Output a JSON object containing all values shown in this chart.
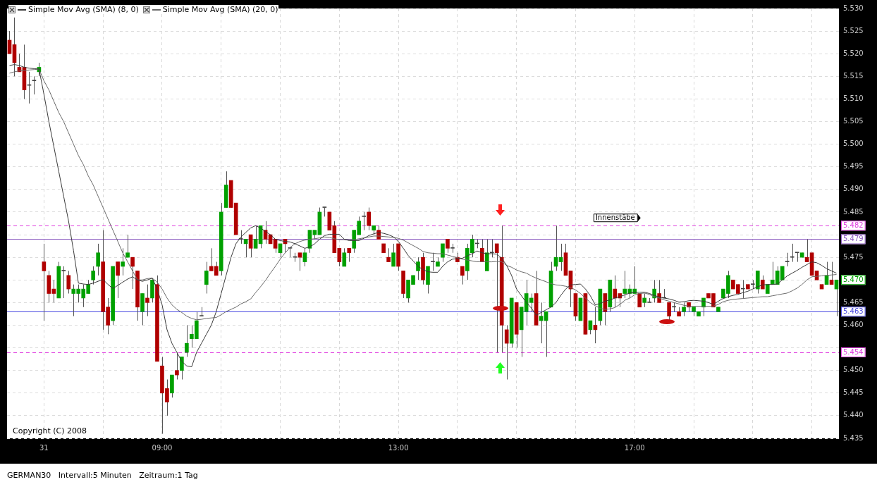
{
  "chart_data": {
    "type": "candlestick",
    "title": "GERMAN30",
    "subtitle": "Intervall:5 Minuten   Zeitraum:1 Tag",
    "categories": [
      null,
      null,
      null,
      null,
      null,
      null,
      null,
      "31",
      null,
      null,
      null,
      null,
      null,
      null,
      null,
      null,
      null,
      null,
      null,
      null,
      null,
      null,
      null,
      null,
      null,
      null,
      null,
      null,
      null,
      null,
      null,
      "09:00",
      null,
      null,
      null,
      null,
      null,
      null,
      null,
      null,
      null,
      null,
      null,
      null,
      null,
      null,
      null,
      null,
      null,
      null,
      null,
      null,
      null,
      null,
      null,
      null,
      null,
      null,
      null,
      null,
      null,
      null,
      null,
      null,
      null,
      null,
      null,
      null,
      null,
      null,
      null,
      null,
      null,
      null,
      null,
      null,
      null,
      null,
      null,
      "13:00",
      null,
      null,
      null,
      null,
      null,
      null,
      null,
      null,
      null,
      null,
      null,
      null,
      null,
      null,
      null,
      null,
      null,
      null,
      null,
      null,
      null,
      null,
      null,
      null,
      null,
      null,
      null,
      null,
      null,
      null,
      null,
      null,
      null,
      null,
      null,
      null,
      null,
      null,
      null,
      null,
      null,
      null,
      null,
      null,
      null,
      null,
      null,
      "17:00",
      null,
      null,
      null,
      null,
      null,
      null,
      null,
      null,
      null,
      null,
      null,
      null,
      null,
      null,
      null,
      null,
      null,
      null,
      null,
      null,
      null,
      null,
      null,
      null,
      null,
      null,
      null,
      null,
      null,
      null,
      null,
      null,
      null,
      null,
      null,
      null,
      null,
      null,
      null,
      null,
      null
    ],
    "ohlc": [
      [
        5523,
        5525,
        5520,
        5520
      ],
      [
        5522,
        5528,
        5515,
        5518
      ],
      [
        5517,
        5520,
        5516,
        5516
      ],
      [
        5517,
        5522,
        5510,
        5512
      ],
      [
        5513,
        5516,
        5509,
        5513
      ],
      [
        5514,
        5515,
        5511,
        5514
      ],
      [
        5516,
        5518,
        5515,
        5517
      ],
      [
        5474,
        5478,
        5461,
        5472
      ],
      [
        5471,
        5472,
        5465,
        5467
      ],
      [
        5468,
        5470,
        5465,
        5467
      ],
      [
        5466,
        5474,
        5466,
        5473
      ],
      [
        5472,
        5473,
        5466,
        5472
      ],
      [
        5471,
        5472,
        5467,
        5468
      ],
      [
        5467,
        5469,
        5462,
        5468
      ],
      [
        5467,
        5469,
        5465,
        5468
      ],
      [
        5466,
        5469,
        5464,
        5468
      ],
      [
        5467,
        5470,
        5467,
        5469
      ],
      [
        5470,
        5473,
        5469,
        5472
      ],
      [
        5473,
        5478,
        5471,
        5476
      ],
      [
        5474,
        5481,
        5459,
        5463
      ],
      [
        5464,
        5466,
        5458,
        5460
      ],
      [
        5461,
        5473,
        5460,
        5473
      ],
      [
        5474,
        5474,
        5466,
        5471
      ],
      [
        5473,
        5477,
        5471,
        5474
      ],
      [
        5475,
        5480,
        5475,
        5476
      ],
      [
        5475,
        5475,
        5468,
        5473
      ],
      [
        5472,
        5472,
        5461,
        5464
      ],
      [
        5463,
        5467,
        5460,
        5467
      ],
      [
        5466,
        5469,
        5462,
        5465
      ],
      [
        5466,
        5470,
        5465,
        5470
      ],
      [
        5469,
        5471,
        5452,
        5452
      ],
      [
        5451,
        5453,
        5436,
        5445
      ],
      [
        5446,
        5448,
        5440,
        5443
      ],
      [
        5445,
        5449,
        5444,
        5449
      ],
      [
        5450,
        5454,
        5448,
        5449
      ],
      [
        5450,
        5453,
        5448,
        5453
      ],
      [
        5454,
        5460,
        5453,
        5456
      ],
      [
        5457,
        5460,
        5455,
        5458
      ],
      [
        5457,
        5463,
        5457,
        5461
      ],
      [
        5462,
        5464,
        5462,
        5462
      ],
      [
        5469,
        5474,
        5467,
        5472
      ],
      [
        5473,
        5477,
        5472,
        5472
      ],
      [
        5473,
        5474,
        5471,
        5471
      ],
      [
        5472,
        5487,
        5471,
        5485
      ],
      [
        5486,
        5494,
        5486,
        5491
      ],
      [
        5492,
        5492,
        5486,
        5486
      ],
      [
        5487,
        5487,
        5480,
        5480
      ],
      [
        5479,
        5481,
        5478,
        5479
      ],
      [
        5478,
        5479,
        5475,
        5479
      ],
      [
        5480,
        5480,
        5475,
        5477
      ],
      [
        5477,
        5482,
        5477,
        5479
      ],
      [
        5478,
        5482,
        5477,
        5482
      ],
      [
        5481,
        5483,
        5478,
        5479
      ],
      [
        5480,
        5480,
        5478,
        5478
      ],
      [
        5479,
        5479,
        5476,
        5477
      ],
      [
        5476,
        5478,
        5475,
        5478
      ],
      [
        5479,
        5479,
        5476,
        5478
      ],
      [
        5477,
        5477,
        5475,
        5477
      ],
      [
        5475,
        5476,
        5474,
        5475
      ],
      [
        5476,
        5476,
        5472,
        5475
      ],
      [
        5474,
        5477,
        5473,
        5476
      ],
      [
        5477,
        5481,
        5476,
        5481
      ],
      [
        5480,
        5481,
        5479,
        5481
      ],
      [
        5480,
        5486,
        5480,
        5485
      ],
      [
        5486,
        5486,
        5484,
        5486
      ],
      [
        5485,
        5485,
        5481,
        5481
      ],
      [
        5482,
        5483,
        5476,
        5476
      ],
      [
        5477,
        5477,
        5473,
        5474
      ],
      [
        5473,
        5477,
        5473,
        5476
      ],
      [
        5477,
        5477,
        5474,
        5476
      ],
      [
        5477,
        5481,
        5476,
        5481
      ],
      [
        5480,
        5484,
        5480,
        5483
      ],
      [
        5484,
        5485,
        5481,
        5484
      ],
      [
        5485,
        5486,
        5481,
        5482
      ],
      [
        5481,
        5482,
        5480,
        5482
      ],
      [
        5481,
        5482,
        5479,
        5479
      ],
      [
        5478,
        5478,
        5476,
        5476
      ],
      [
        5475,
        5477,
        5474,
        5474
      ],
      [
        5473,
        5478,
        5473,
        5476
      ],
      [
        5478,
        5478,
        5472,
        5473
      ],
      [
        5472,
        5472,
        5466,
        5467
      ],
      [
        5466,
        5470,
        5465,
        5470
      ],
      [
        5469,
        5471,
        5469,
        5471
      ],
      [
        5472,
        5475,
        5470,
        5474
      ],
      [
        5475,
        5476,
        5469,
        5470
      ],
      [
        5469,
        5473,
        5467,
        5473
      ],
      [
        5474,
        5476,
        5472,
        5474
      ],
      [
        5473,
        5475,
        5473,
        5474
      ],
      [
        5475,
        5478,
        5474,
        5478
      ],
      [
        5479,
        5479,
        5476,
        5477
      ],
      [
        5477,
        5478,
        5476,
        5477
      ],
      [
        5475,
        5476,
        5474,
        5474
      ],
      [
        5473,
        5473,
        5469,
        5471
      ],
      [
        5472,
        5478,
        5470,
        5477
      ],
      [
        5476,
        5480,
        5475,
        5479
      ],
      [
        5478,
        5479,
        5477,
        5478
      ],
      [
        5477,
        5479,
        5474,
        5474
      ],
      [
        5472,
        5479,
        5472,
        5476
      ],
      [
        5476,
        5479,
        5475,
        5476
      ],
      [
        5478,
        5478,
        5454,
        5476
      ],
      [
        5475,
        5482,
        5454,
        5460
      ],
      [
        5459,
        5460,
        5448,
        5456
      ],
      [
        5456,
        5466,
        5455,
        5466
      ],
      [
        5465,
        5465,
        5455,
        5458
      ],
      [
        5459,
        5464,
        5453,
        5464
      ],
      [
        5463,
        5470,
        5460,
        5467
      ],
      [
        5465,
        5467,
        5463,
        5466
      ],
      [
        5467,
        5472,
        5460,
        5460
      ],
      [
        5461,
        5465,
        5456,
        5462
      ],
      [
        5461,
        5463,
        5453,
        5463
      ],
      [
        5464,
        5474,
        5464,
        5472
      ],
      [
        5473,
        5482,
        5472,
        5475
      ],
      [
        5474,
        5478,
        5472,
        5475
      ],
      [
        5476,
        5478,
        5471,
        5471
      ],
      [
        5472,
        5472,
        5464,
        5468
      ],
      [
        5467,
        5467,
        5461,
        5462
      ],
      [
        5461,
        5466,
        5461,
        5466
      ],
      [
        5467,
        5467,
        5458,
        5458
      ],
      [
        5459,
        5461,
        5458,
        5461
      ],
      [
        5460,
        5464,
        5456,
        5459
      ],
      [
        5461,
        5468,
        5460,
        5468
      ],
      [
        5467,
        5467,
        5460,
        5463
      ],
      [
        5464,
        5470,
        5463,
        5470
      ],
      [
        5468,
        5471,
        5464,
        5466
      ],
      [
        5467,
        5467,
        5464,
        5466
      ],
      [
        5467,
        5472,
        5466,
        5468
      ],
      [
        5467,
        5469,
        5466,
        5468
      ],
      [
        5467,
        5473,
        5467,
        5468
      ],
      [
        5467,
        5467,
        5464,
        5464
      ],
      [
        5465,
        5467,
        5464,
        5466
      ],
      [
        5465,
        5466,
        5465,
        5465
      ],
      [
        5466,
        5470,
        5465,
        5468
      ],
      [
        5467,
        5470,
        5465,
        5465
      ],
      [
        5466,
        5468,
        5466,
        5466
      ],
      [
        5465,
        5465,
        5461,
        5462
      ],
      [
        5464,
        5465,
        5463,
        5464
      ],
      [
        5463,
        5464,
        5462,
        5462
      ],
      [
        5463,
        5465,
        5462,
        5464
      ],
      [
        5465,
        5465,
        5463,
        5464
      ],
      [
        5463,
        5464,
        5462,
        5464
      ],
      [
        5462,
        5463,
        5462,
        5463
      ],
      [
        5464,
        5466,
        5462,
        5466
      ],
      [
        5467,
        5467,
        5466,
        5466
      ],
      [
        5467,
        5467,
        5464,
        5464
      ],
      [
        5463,
        5464,
        5463,
        5464
      ],
      [
        5466,
        5468,
        5466,
        5468
      ],
      [
        5467,
        5472,
        5466,
        5471
      ],
      [
        5470,
        5470,
        5468,
        5468
      ],
      [
        5469,
        5469,
        5467,
        5467
      ],
      [
        5468,
        5470,
        5466,
        5468
      ],
      [
        5469,
        5469,
        5468,
        5468
      ],
      [
        5469,
        5470,
        5468,
        5469
      ],
      [
        5468,
        5472,
        5467,
        5472
      ],
      [
        5470,
        5471,
        5468,
        5468
      ],
      [
        5467,
        5469,
        5467,
        5469
      ],
      [
        5469,
        5474,
        5469,
        5470
      ],
      [
        5469,
        5473,
        5469,
        5472
      ],
      [
        5470,
        5473,
        5470,
        5473
      ],
      [
        5474,
        5476,
        5473,
        5474
      ],
      [
        5475,
        5478,
        5474,
        5475
      ],
      [
        5476,
        5476,
        5474,
        5476
      ],
      [
        5475,
        5476,
        5475,
        5476
      ],
      [
        5475,
        5479,
        5474,
        5474
      ],
      [
        5476,
        5476,
        5471,
        5471
      ],
      [
        5472,
        5472,
        5470,
        5470
      ],
      [
        5469,
        5469,
        5468,
        5468
      ],
      [
        5469,
        5474,
        5469,
        5471
      ],
      [
        5470,
        5474,
        5469,
        5469
      ],
      [
        5468,
        5470,
        5462,
        5470
      ]
    ],
    "colors": [
      "#b00000",
      "#b00000",
      "#b00000",
      "#b00000",
      "#404040",
      "#404040",
      "#00a000",
      "#b00000",
      "#b00000",
      "#b00000",
      "#00a000",
      "#404040",
      "#b00000",
      "#00a000",
      "#00a000",
      "#00a000",
      "#00a000",
      "#00a000",
      "#00a000",
      "#b00000",
      "#b00000",
      "#00a000",
      "#b00000",
      "#00a000",
      "#00a000",
      "#b00000",
      "#b00000",
      "#00a000",
      "#b00000",
      "#00a000",
      "#b00000",
      "#b00000",
      "#b00000",
      "#00a000",
      "#b00000",
      "#00a000",
      "#00a000",
      "#00a000",
      "#00a000",
      "#404040",
      "#00a000",
      "#b00000",
      "#b00000",
      "#00a000",
      "#00a000",
      "#b00000",
      "#b00000",
      "#404040",
      "#00a000",
      "#b00000",
      "#00a000",
      "#00a000",
      "#b00000",
      "#b00000",
      "#b00000",
      "#00a000",
      "#b00000",
      "#404040",
      "#404040",
      "#b00000",
      "#00a000",
      "#00a000",
      "#00a000",
      "#00a000",
      "#404040",
      "#b00000",
      "#b00000",
      "#b00000",
      "#00a000",
      "#b00000",
      "#00a000",
      "#00a000",
      "#404040",
      "#b00000",
      "#00a000",
      "#b00000",
      "#b00000",
      "#b00000",
      "#00a000",
      "#b00000",
      "#b00000",
      "#00a000",
      "#00a000",
      "#00a000",
      "#b00000",
      "#00a000",
      "#404040",
      "#00a000",
      "#00a000",
      "#b00000",
      "#404040",
      "#b00000",
      "#b00000",
      "#00a000",
      "#00a000",
      "#404040",
      "#b00000",
      "#00a000",
      "#404040",
      "#b00000",
      "#b00000",
      "#b00000",
      "#00a000",
      "#b00000",
      "#00a000",
      "#00a000",
      "#00a000",
      "#b00000",
      "#00a000",
      "#00a000",
      "#00a000",
      "#00a000",
      "#00a000",
      "#b00000",
      "#b00000",
      "#b00000",
      "#00a000",
      "#b00000",
      "#00a000",
      "#b00000",
      "#00a000",
      "#b00000",
      "#00a000",
      "#b00000",
      "#b00000",
      "#00a000",
      "#00a000",
      "#00a000",
      "#b00000",
      "#00a000",
      "#404040",
      "#00a000",
      "#b00000",
      "#404040",
      "#b00000",
      "#404040",
      "#b00000",
      "#00a000",
      "#b00000",
      "#00a000",
      "#00a000",
      "#00a000",
      "#b00000",
      "#b00000",
      "#00a000",
      "#00a000",
      "#00a000",
      "#b00000",
      "#b00000",
      "#404040",
      "#b00000",
      "#404040",
      "#00a000",
      "#b00000",
      "#00a000",
      "#00a000",
      "#00a000",
      "#00a000",
      "#404040",
      "#404040",
      "#404040",
      "#00a000",
      "#b00000",
      "#b00000",
      "#b00000",
      "#b00000",
      "#00a000",
      "#b00000",
      "#00a000"
    ],
    "series": [
      {
        "name": "Simple Mov Avg (SMA) (8, 0)",
        "type": "line",
        "color": "#3a3a3a",
        "values": [
          5517.4,
          5517.6,
          5517.4,
          5517,
          5516.8,
          5516.7,
          5516.6,
          5511,
          5505,
          5499.5,
          5494,
          5488.5,
          5483,
          5476.5,
          5469.3,
          5469.1,
          5469,
          5469.3,
          5469.7,
          5470.1,
          5469,
          5468.1,
          5468.8,
          5469.5,
          5470.2,
          5470.7,
          5470,
          5469.7,
          5470,
          5470.4,
          5468,
          5464.5,
          5459,
          5456,
          5454,
          5452,
          5451,
          5450.8,
          5454,
          5456,
          5458,
          5460,
          5463,
          5467,
          5471,
          5475,
          5478,
          5479.5,
          5480.5,
          5481.5,
          5482,
          5481.5,
          5480.7,
          5480,
          5479,
          5478.7,
          5478.5,
          5478.4,
          5478,
          5477.5,
          5477,
          5477.3,
          5478,
          5479,
          5479.8,
          5480.1,
          5480.1,
          5480.1,
          5479,
          5478.7,
          5478.7,
          5478.7,
          5479.2,
          5479.8,
          5480.2,
          5480.5,
          5480.3,
          5480,
          5479.5,
          5478.5,
          5477,
          5475.4,
          5474.2,
          5473,
          5472.3,
          5471.8,
          5471.7,
          5471.7,
          5473,
          5474,
          5474.6,
          5474.7,
          5474.8,
          5475.3,
          5475.8,
          5476.4,
          5476,
          5475.8,
          5475.8,
          5475.7,
          5474.8,
          5473.2,
          5471,
          5468,
          5466.5,
          5465,
          5463.8,
          5462.2,
          5462.8,
          5463.4,
          5464,
          5465,
          5466.6,
          5468,
          5468.9,
          5469,
          5469.1,
          5468,
          5466.5,
          5464.5,
          5464.8,
          5465.3,
          5465.6,
          5466,
          5466.3,
          5466.7,
          5467.1,
          5467.2,
          5467.3,
          5467.3,
          5467,
          5466.6,
          5466.2,
          5466,
          5465.8,
          5465.5,
          5465.1,
          5465.2,
          5465.4,
          5465.5,
          5465.4,
          5465.3,
          5465,
          5464.6,
          5465.3,
          5465.9,
          5466.3,
          5466.6,
          5466.8,
          5467.2,
          5467.5,
          5468,
          5468.5,
          5468.9,
          5469,
          5469,
          5469.1,
          5470,
          5470.9,
          5471.5,
          5472.1,
          5472.8,
          5473.4,
          5474,
          5473.8,
          5473.2,
          5472.5,
          5472,
          5471.5
        ]
      },
      {
        "name": "Simple Mov Avg (SMA) (20, 0)",
        "type": "line",
        "color": "#6a6a6a",
        "values": [
          5515.7,
          5516,
          5516.2,
          5516.3,
          5516.4,
          5516.5,
          5516.6,
          5514,
          5512,
          5509.5,
          5507,
          5505,
          5502.5,
          5500,
          5497.5,
          5495.5,
          5493,
          5491,
          5488.5,
          5486,
          5483.5,
          5481,
          5478.5,
          5476,
          5474,
          5472,
          5470,
          5470,
          5470.3,
          5470.4,
          5469.5,
          5468,
          5466,
          5464.5,
          5463.5,
          5462.8,
          5462,
          5461.5,
          5461.2,
          5461.3,
          5461.5,
          5461.6,
          5461.7,
          5462.3,
          5463,
          5463.5,
          5464,
          5464.7,
          5465.2,
          5465.8,
          5467.2,
          5468.5,
          5469.9,
          5471.5,
          5473,
          5474.6,
          5476,
          5477.2,
          5478,
          5478.5,
          5478.8,
          5479,
          5479.1,
          5479.3,
          5479.5,
          5479.4,
          5479.1,
          5478.9,
          5478.9,
          5478.9,
          5478.9,
          5479.1,
          5479.3,
          5479.5,
          5479.7,
          5479.7,
          5479.6,
          5479.5,
          5479.4,
          5479.2,
          5478.8,
          5478.2,
          5477.6,
          5477,
          5476.3,
          5476,
          5475.9,
          5475.8,
          5475.8,
          5475.5,
          5475.2,
          5474.9,
          5474.6,
          5474.4,
          5474.2,
          5474,
          5474.1,
          5474,
          5474,
          5474.1,
          5474,
          5473.2,
          5472.8,
          5472.2,
          5471.8,
          5471.5,
          5470.9,
          5470.4,
          5470,
          5469.6,
          5469.2,
          5468.9,
          5468.8,
          5468.6,
          5468.3,
          5467.8,
          5467,
          5466,
          5465,
          5464.3,
          5463.7,
          5463.5,
          5463.6,
          5463.9,
          5464.6,
          5465.5,
          5466,
          5466.7,
          5467,
          5467.1,
          5466.8,
          5466.3,
          5466,
          5465.6,
          5465.3,
          5465,
          5464.7,
          5464.4,
          5464.2,
          5464.2,
          5464.2,
          5464.2,
          5464.2,
          5464.2,
          5464.6,
          5465.2,
          5465.5,
          5465.7,
          5465.8,
          5465.9,
          5466,
          5466.1,
          5466.2,
          5466.3,
          5466.3,
          5466.5,
          5466.7,
          5466.9,
          5467.1,
          5467.6,
          5468.2,
          5469,
          5470,
          5470.7,
          5470.8,
          5470.9,
          5471,
          5471.1,
          5471.2
        ]
      }
    ],
    "ylim": [
      5435,
      5530
    ],
    "yticks": [
      {
        "value": 5435,
        "label": "5.435"
      },
      {
        "value": 5440,
        "label": "5.440"
      },
      {
        "value": 5445,
        "label": "5.445"
      },
      {
        "value": 5450,
        "label": "5.450"
      },
      {
        "value": 5455,
        "label": null
      },
      {
        "value": 5460,
        "label": "5.460"
      },
      {
        "value": 5465,
        "label": "5.465"
      },
      {
        "value": 5470,
        "label": null
      },
      {
        "value": 5475,
        "label": "5.475"
      },
      {
        "value": 5480,
        "label": null
      },
      {
        "value": 5485,
        "label": "5.485"
      },
      {
        "value": 5490,
        "label": "5.490"
      },
      {
        "value": 5495,
        "label": "5.495"
      },
      {
        "value": 5500,
        "label": "5.500"
      },
      {
        "value": 5505,
        "label": "5.505"
      },
      {
        "value": 5510,
        "label": "5.510"
      },
      {
        "value": 5515,
        "label": "5.515"
      },
      {
        "value": 5520,
        "label": "5.520"
      },
      {
        "value": 5525,
        "label": "5.525"
      },
      {
        "value": 5530,
        "label": "5.530"
      }
    ],
    "ref_lines": [
      {
        "axis": "y",
        "value": 5482,
        "label": "5.482",
        "color": "#e040e0",
        "line_style": "dashed"
      },
      {
        "axis": "y",
        "value": 5479,
        "label": "5.479",
        "color": "#8c5cc0"
      },
      {
        "axis": "y",
        "value": 5463,
        "label": "5.463",
        "color": "#4a4ae0"
      },
      {
        "axis": "y",
        "value": 5454,
        "label": "5.454",
        "color": "#e040e0",
        "line_style": "dashed"
      }
    ],
    "annotations": [
      "Copyright (C) 2008",
      "Innenstäbe",
      {
        "text": "5.470",
        "y": 5470
      }
    ],
    "grid": true,
    "legend": "top left"
  }
}
